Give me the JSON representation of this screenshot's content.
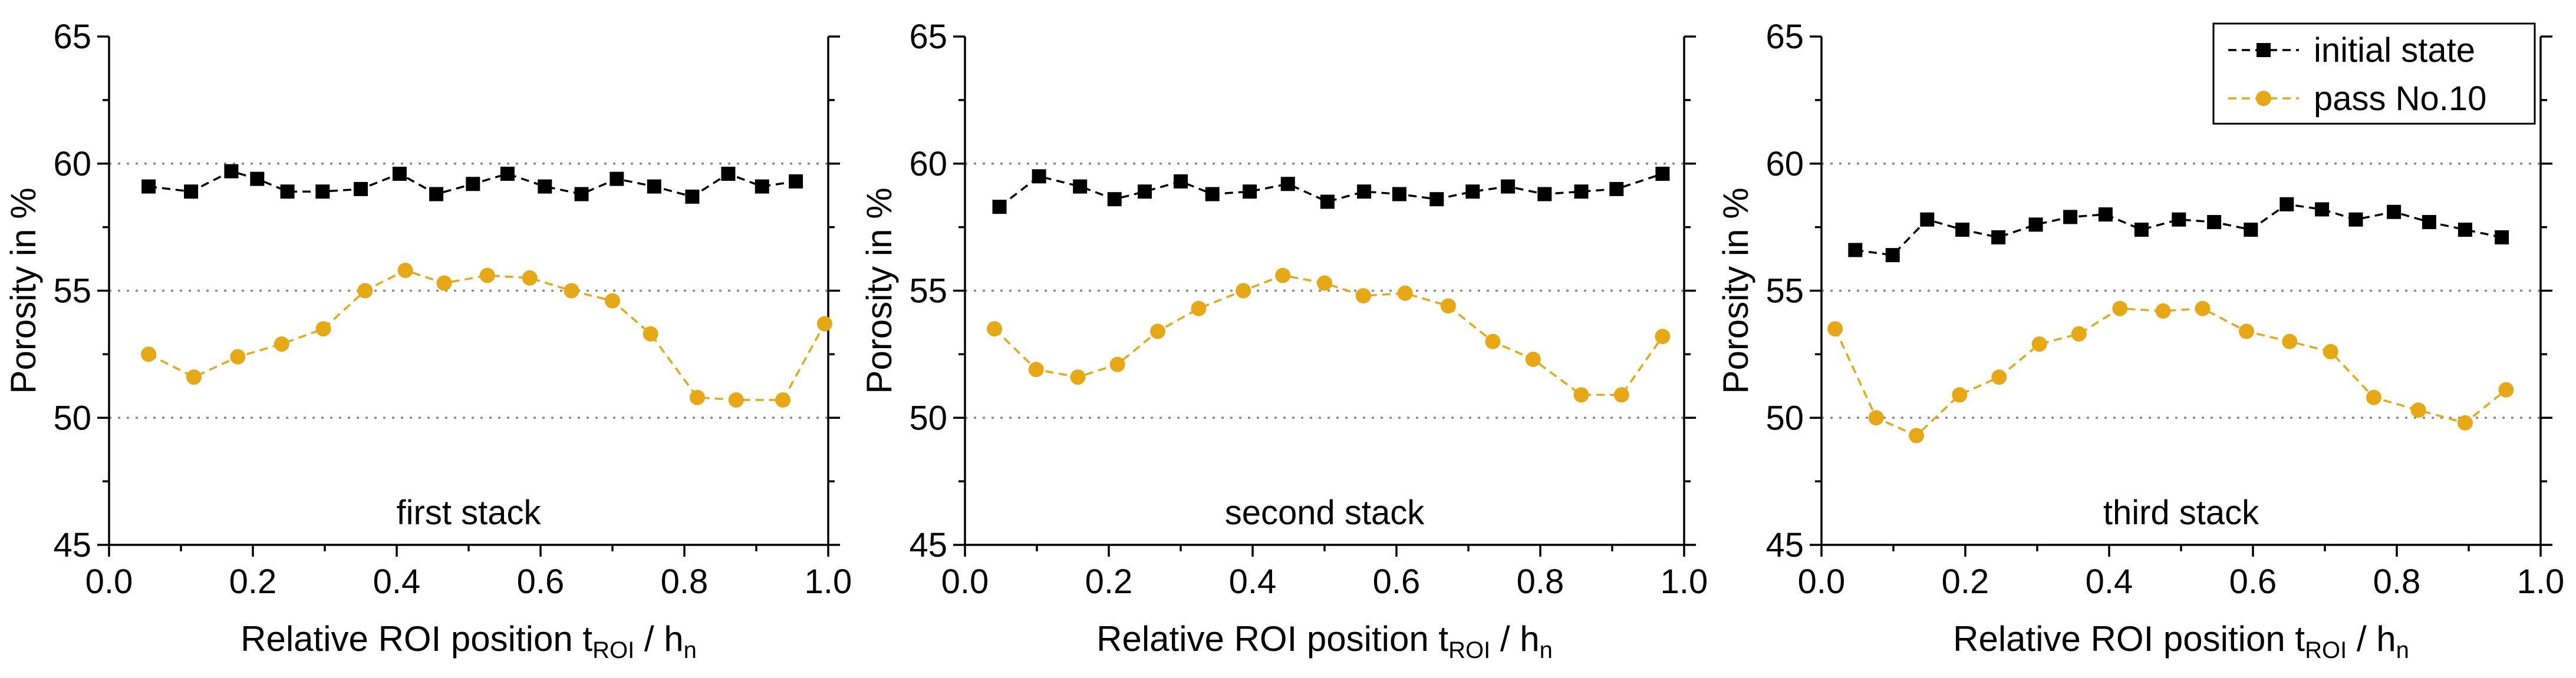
{
  "chart_data": [
    {
      "type": "line",
      "title": "",
      "annotation": "first stack",
      "xlabel": "Relative ROI position",
      "xlabel_math": {
        "t": "t",
        "t_sub": "ROI",
        "sep": " / ",
        "h": "h",
        "h_sub": "n"
      },
      "ylabel": "Porosity in %",
      "xlim": [
        0.0,
        1.0
      ],
      "ylim": [
        45,
        65
      ],
      "xticks": [
        "0.0",
        "0.2",
        "0.4",
        "0.6",
        "0.8",
        "1.0"
      ],
      "yticks": [
        "45",
        "50",
        "55",
        "60",
        "65"
      ],
      "gridlines_y": [
        50,
        55,
        60
      ],
      "series": [
        {
          "name": "initial state",
          "marker": "square",
          "color": "#000000",
          "x": [
            0.055,
            0.114,
            0.17,
            0.206,
            0.248,
            0.297,
            0.35,
            0.404,
            0.455,
            0.506,
            0.554,
            0.606,
            0.657,
            0.706,
            0.758,
            0.811,
            0.861,
            0.908,
            0.955
          ],
          "y": [
            59.1,
            58.9,
            59.7,
            59.4,
            58.9,
            58.9,
            59.0,
            59.6,
            58.8,
            59.2,
            59.6,
            59.1,
            58.8,
            59.4,
            59.1,
            58.7,
            59.6,
            59.1,
            59.3
          ]
        },
        {
          "name": "pass No.10",
          "marker": "circle",
          "color": "#E6A817",
          "x": [
            0.055,
            0.118,
            0.179,
            0.24,
            0.298,
            0.356,
            0.412,
            0.466,
            0.526,
            0.585,
            0.643,
            0.7,
            0.753,
            0.818,
            0.872,
            0.937,
            0.995
          ],
          "y": [
            52.5,
            51.6,
            52.4,
            52.9,
            53.5,
            55.0,
            55.8,
            55.3,
            55.6,
            55.5,
            55.0,
            54.6,
            53.3,
            50.8,
            50.7,
            50.7,
            53.7
          ]
        }
      ]
    },
    {
      "type": "line",
      "title": "",
      "annotation": "second stack",
      "xlabel": "Relative ROI position",
      "xlabel_math": {
        "t": "t",
        "t_sub": "ROI",
        "sep": " / ",
        "h": "h",
        "h_sub": "n"
      },
      "ylabel": "Porosity in %",
      "xlim": [
        0.0,
        1.0
      ],
      "ylim": [
        45,
        65
      ],
      "xticks": [
        "0.0",
        "0.2",
        "0.4",
        "0.6",
        "0.8",
        "1.0"
      ],
      "yticks": [
        "45",
        "50",
        "55",
        "60",
        "65"
      ],
      "gridlines_y": [
        50,
        55,
        60
      ],
      "series": [
        {
          "name": "initial state",
          "marker": "square",
          "color": "#000000",
          "x": [
            0.048,
            0.103,
            0.16,
            0.208,
            0.25,
            0.3,
            0.344,
            0.396,
            0.449,
            0.504,
            0.555,
            0.604,
            0.656,
            0.706,
            0.755,
            0.806,
            0.857,
            0.906,
            0.97
          ],
          "y": [
            58.3,
            59.5,
            59.1,
            58.6,
            58.9,
            59.3,
            58.8,
            58.9,
            59.2,
            58.5,
            58.9,
            58.8,
            58.6,
            58.9,
            59.1,
            58.8,
            58.9,
            59.0,
            59.6
          ]
        },
        {
          "name": "pass No.10",
          "marker": "circle",
          "color": "#E6A817",
          "x": [
            0.041,
            0.099,
            0.157,
            0.212,
            0.268,
            0.325,
            0.387,
            0.442,
            0.5,
            0.554,
            0.612,
            0.672,
            0.734,
            0.79,
            0.857,
            0.913,
            0.97
          ],
          "y": [
            53.5,
            51.9,
            51.6,
            52.1,
            53.4,
            54.3,
            55.0,
            55.6,
            55.3,
            54.8,
            54.9,
            54.4,
            53.0,
            52.3,
            50.9,
            50.9,
            53.2
          ]
        }
      ]
    },
    {
      "type": "line",
      "title": "",
      "annotation": "third stack",
      "xlabel": "Relative ROI position",
      "xlabel_math": {
        "t": "t",
        "t_sub": "ROI",
        "sep": " / ",
        "h": "h",
        "h_sub": "n"
      },
      "ylabel": "Porosity in %",
      "xlim": [
        0.0,
        1.0
      ],
      "ylim": [
        45,
        65
      ],
      "xticks": [
        "0.0",
        "0.2",
        "0.4",
        "0.6",
        "0.8",
        "1.0"
      ],
      "yticks": [
        "45",
        "50",
        "55",
        "60",
        "65"
      ],
      "gridlines_y": [
        50,
        55,
        60
      ],
      "legend": {
        "position": "top-right",
        "entries": [
          "initial state",
          "pass No.10"
        ]
      },
      "series": [
        {
          "name": "initial state",
          "marker": "square",
          "color": "#000000",
          "x": [
            0.047,
            0.099,
            0.147,
            0.196,
            0.246,
            0.298,
            0.346,
            0.395,
            0.445,
            0.497,
            0.546,
            0.597,
            0.647,
            0.696,
            0.743,
            0.796,
            0.845,
            0.895,
            0.946
          ],
          "y": [
            56.6,
            56.4,
            57.8,
            57.4,
            57.1,
            57.6,
            57.9,
            58.0,
            57.4,
            57.8,
            57.7,
            57.4,
            58.4,
            58.2,
            57.8,
            58.1,
            57.7,
            57.4,
            57.1
          ]
        },
        {
          "name": "pass No.10",
          "marker": "circle",
          "color": "#E6A817",
          "x": [
            0.019,
            0.076,
            0.132,
            0.192,
            0.247,
            0.303,
            0.358,
            0.415,
            0.475,
            0.53,
            0.591,
            0.651,
            0.708,
            0.768,
            0.83,
            0.895,
            0.952
          ],
          "y": [
            53.5,
            50.0,
            49.3,
            50.9,
            51.6,
            52.9,
            53.3,
            54.3,
            54.2,
            54.3,
            53.4,
            53.0,
            52.6,
            50.8,
            50.3,
            49.8,
            51.1
          ]
        }
      ]
    }
  ]
}
